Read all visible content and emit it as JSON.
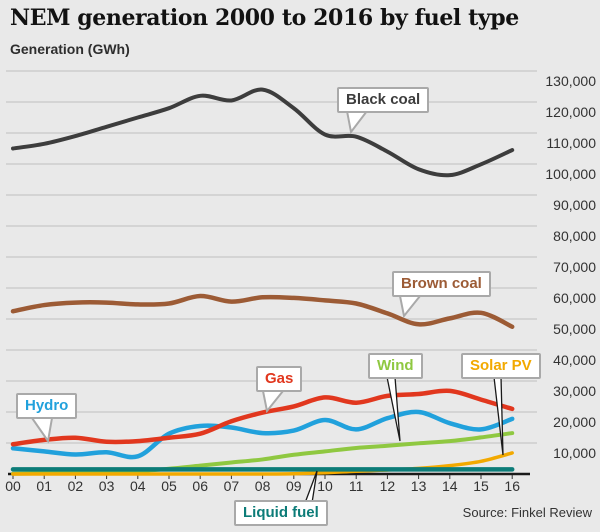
{
  "header": {
    "title": "NEM generation 2000 to 2016 by fuel type",
    "subtitle": "Generation (GWh)"
  },
  "source": "Source: Finkel Review",
  "chart_data": {
    "type": "line",
    "title": "NEM generation 2000 to 2016 by fuel type",
    "ylabel": "Generation (GWh)",
    "xlabel": "",
    "ylim": [
      0,
      130000
    ],
    "y_tick_step": 10000,
    "grid": true,
    "legend_position": "inline-callouts",
    "x_labels": [
      "00",
      "01",
      "02",
      "03",
      "04",
      "05",
      "06",
      "07",
      "08",
      "09",
      "10",
      "11",
      "12",
      "13",
      "14",
      "15",
      "16"
    ],
    "y_tick_labels": [
      "10,000",
      "20,000",
      "30,000",
      "40,000",
      "50,000",
      "60,000",
      "70,000",
      "80,000",
      "90,000",
      "100,000",
      "110,000",
      "120,000",
      "130,000"
    ],
    "series": [
      {
        "name": "Black coal",
        "color": "#3d3d3d",
        "width": 4,
        "values": [
          105000,
          106500,
          109000,
          112000,
          115000,
          118000,
          122000,
          120500,
          124000,
          118000,
          109500,
          108800,
          104000,
          98300,
          96400,
          99900,
          104500
        ]
      },
      {
        "name": "Brown coal",
        "color": "#9c5b35",
        "width": 4.5,
        "values": [
          52500,
          54500,
          55300,
          55300,
          54700,
          55000,
          57400,
          55600,
          57000,
          56800,
          56000,
          55000,
          51800,
          48300,
          50200,
          52000,
          47500
        ]
      },
      {
        "name": "Hydro",
        "color": "#21a1dc",
        "width": 4.5,
        "values": [
          8300,
          7300,
          6300,
          7000,
          5700,
          13000,
          15500,
          15000,
          13200,
          14000,
          17400,
          14400,
          18000,
          20000,
          16400,
          14400,
          17800
        ]
      },
      {
        "name": "Gas",
        "color": "#e1371e",
        "width": 4.5,
        "values": [
          9600,
          11000,
          11700,
          10400,
          10600,
          11700,
          13000,
          17000,
          19800,
          21800,
          24700,
          23000,
          25200,
          25800,
          26800,
          24000,
          21000
        ]
      },
      {
        "name": "Wind",
        "color": "#8fc841",
        "width": 4,
        "values": [
          100,
          200,
          300,
          500,
          900,
          1700,
          2700,
          3700,
          4700,
          6200,
          7300,
          8400,
          9100,
          9900,
          10600,
          11800,
          13200
        ]
      },
      {
        "name": "Solar PV",
        "color": "#f2a900",
        "width": 3.5,
        "values": [
          0,
          0,
          0,
          0,
          0,
          0,
          0,
          0,
          0,
          100,
          400,
          900,
          1300,
          1800,
          2700,
          4100,
          6800
        ]
      },
      {
        "name": "Liquid fuel",
        "color": "#0c7c78",
        "width": 4.5,
        "values": [
          1500,
          1500,
          1500,
          1500,
          1500,
          1500,
          1500,
          1500,
          1500,
          1500,
          1500,
          1500,
          1500,
          1500,
          1500,
          1500,
          1500
        ]
      }
    ]
  }
}
